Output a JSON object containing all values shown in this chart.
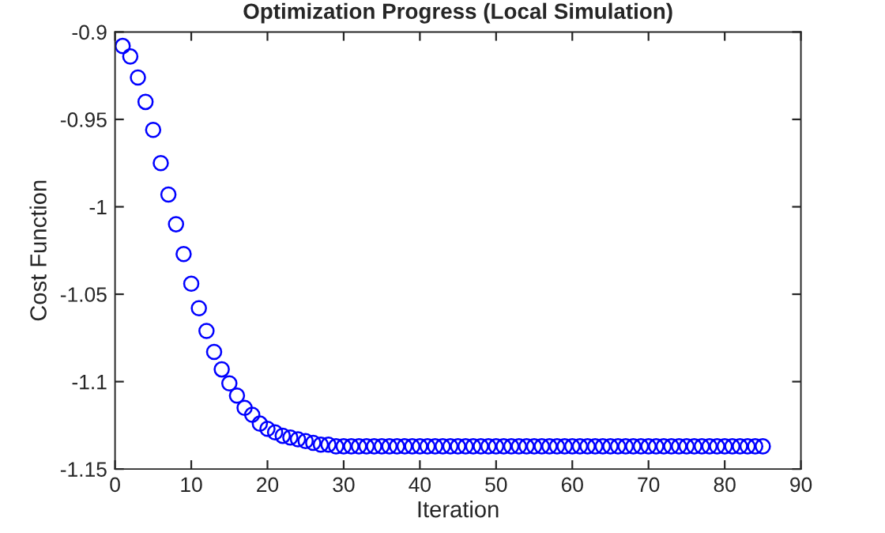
{
  "chart_data": {
    "type": "scatter",
    "title": "Optimization Progress (Local Simulation)",
    "xlabel": "Iteration",
    "ylabel": "Cost Function",
    "x": [
      1,
      2,
      3,
      4,
      5,
      6,
      7,
      8,
      9,
      10,
      11,
      12,
      13,
      14,
      15,
      16,
      17,
      18,
      19,
      20,
      21,
      22,
      23,
      24,
      25,
      26,
      27,
      28,
      29,
      30,
      31,
      32,
      33,
      34,
      35,
      36,
      37,
      38,
      39,
      40,
      41,
      42,
      43,
      44,
      45,
      46,
      47,
      48,
      49,
      50,
      51,
      52,
      53,
      54,
      55,
      56,
      57,
      58,
      59,
      60,
      61,
      62,
      63,
      64,
      65,
      66,
      67,
      68,
      69,
      70,
      71,
      72,
      73,
      74,
      75,
      76,
      77,
      78,
      79,
      80,
      81,
      82,
      83,
      84,
      85
    ],
    "series": [
      {
        "color": "#0000ff",
        "values": [
          -0.908,
          -0.914,
          -0.926,
          -0.94,
          -0.956,
          -0.975,
          -0.993,
          -1.01,
          -1.027,
          -1.044,
          -1.058,
          -1.071,
          -1.083,
          -1.093,
          -1.101,
          -1.108,
          -1.115,
          -1.119,
          -1.124,
          -1.127,
          -1.129,
          -1.131,
          -1.132,
          -1.133,
          -1.134,
          -1.135,
          -1.136,
          -1.136,
          -1.137,
          -1.137,
          -1.137,
          -1.137,
          -1.137,
          -1.137,
          -1.137,
          -1.137,
          -1.137,
          -1.137,
          -1.137,
          -1.137,
          -1.137,
          -1.137,
          -1.137,
          -1.137,
          -1.137,
          -1.137,
          -1.137,
          -1.137,
          -1.137,
          -1.137,
          -1.137,
          -1.137,
          -1.137,
          -1.137,
          -1.137,
          -1.137,
          -1.137,
          -1.137,
          -1.137,
          -1.137,
          -1.137,
          -1.137,
          -1.137,
          -1.137,
          -1.137,
          -1.137,
          -1.137,
          -1.137,
          -1.137,
          -1.137,
          -1.137,
          -1.137,
          -1.137,
          -1.137,
          -1.137,
          -1.137,
          -1.137,
          -1.137,
          -1.137,
          -1.137,
          -1.137,
          -1.137,
          -1.137,
          -1.137,
          -1.137
        ]
      }
    ],
    "marker": "circle",
    "xlim": [
      0,
      90
    ],
    "xticks": [
      0,
      10,
      20,
      30,
      40,
      50,
      60,
      70,
      80,
      90
    ],
    "ylim": [
      -1.15,
      -0.9
    ],
    "yticks": [
      -1.15,
      -1.1,
      -1.05,
      -1,
      -0.95,
      -0.9
    ]
  }
}
